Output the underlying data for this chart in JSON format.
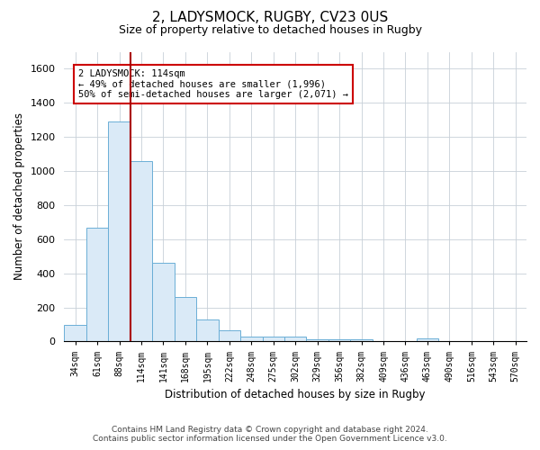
{
  "title": "2, LADYSMOCK, RUGBY, CV23 0US",
  "subtitle": "Size of property relative to detached houses in Rugby",
  "xlabel": "Distribution of detached houses by size in Rugby",
  "ylabel": "Number of detached properties",
  "footer_line1": "Contains HM Land Registry data © Crown copyright and database right 2024.",
  "footer_line2": "Contains public sector information licensed under the Open Government Licence v3.0.",
  "annotation_line1": "2 LADYSMOCK: 114sqm",
  "annotation_line2": "← 49% of detached houses are smaller (1,996)",
  "annotation_line3": "50% of semi-detached houses are larger (2,071) →",
  "bar_color": "#daeaf7",
  "bar_edge_color": "#6aaed6",
  "red_line_color": "#aa0000",
  "red_line_index": 2.5,
  "categories": [
    "34sqm",
    "61sqm",
    "88sqm",
    "114sqm",
    "141sqm",
    "168sqm",
    "195sqm",
    "222sqm",
    "248sqm",
    "275sqm",
    "302sqm",
    "329sqm",
    "356sqm",
    "382sqm",
    "409sqm",
    "436sqm",
    "463sqm",
    "490sqm",
    "516sqm",
    "543sqm",
    "570sqm"
  ],
  "values": [
    95,
    665,
    1290,
    1060,
    460,
    260,
    130,
    65,
    30,
    28,
    28,
    10,
    10,
    10,
    0,
    0,
    20,
    0,
    0,
    0,
    0
  ],
  "ylim": [
    0,
    1700
  ],
  "yticks": [
    0,
    200,
    400,
    600,
    800,
    1000,
    1200,
    1400,
    1600
  ],
  "grid_color": "#c8d0d8",
  "background_color": "#ffffff",
  "title_fontsize": 11,
  "subtitle_fontsize": 9
}
